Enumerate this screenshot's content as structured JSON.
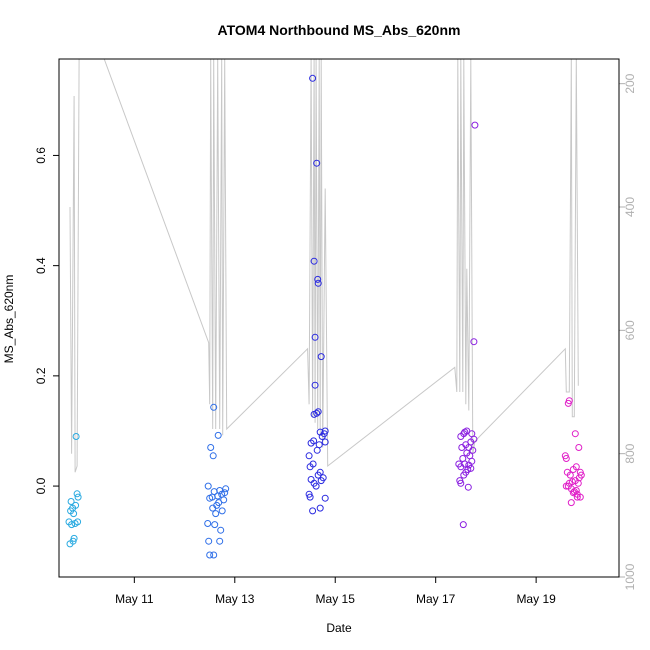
{
  "chart_data": {
    "type": "scatter",
    "title": "ATOM4 Northbound MS_Abs_620nm",
    "xlabel": "Date",
    "ylabel": "MS_Abs_620nm",
    "xlim": [
      9.5,
      20.65
    ],
    "ylim": [
      -0.165,
      0.775
    ],
    "y_ticks": [
      0.0,
      0.2,
      0.4,
      0.6
    ],
    "x_ticks": [
      {
        "value": 11,
        "label": "May 11"
      },
      {
        "value": 13,
        "label": "May 13"
      },
      {
        "value": 15,
        "label": "May 15"
      },
      {
        "value": 17,
        "label": "May 17"
      },
      {
        "value": 19,
        "label": "May 19"
      }
    ],
    "secondary_axis": {
      "side": "right",
      "reversed": true,
      "range": [
        1000,
        160
      ],
      "ticks": [
        200,
        400,
        600,
        800,
        1000
      ],
      "color": "#b0b0b0"
    },
    "point_groups": [
      {
        "color": "#29aae1",
        "points": [
          [
            9.72,
            -0.105
          ],
          [
            9.78,
            -0.1
          ],
          [
            9.8,
            -0.095
          ],
          [
            9.7,
            -0.065
          ],
          [
            9.75,
            -0.07
          ],
          [
            9.82,
            -0.068
          ],
          [
            9.87,
            -0.065
          ],
          [
            9.79,
            -0.05
          ],
          [
            9.73,
            -0.045
          ],
          [
            9.77,
            -0.04
          ],
          [
            9.74,
            -0.028
          ],
          [
            9.83,
            -0.035
          ],
          [
            9.88,
            -0.02
          ],
          [
            9.86,
            -0.014
          ],
          [
            9.84,
            0.09
          ]
        ]
      },
      {
        "color": "#2f6fe8",
        "points": [
          [
            12.5,
            -0.125
          ],
          [
            12.58,
            -0.125
          ],
          [
            12.48,
            -0.1
          ],
          [
            12.7,
            -0.1
          ],
          [
            12.72,
            -0.08
          ],
          [
            12.46,
            -0.068
          ],
          [
            12.6,
            -0.07
          ],
          [
            12.62,
            -0.05
          ],
          [
            12.75,
            -0.045
          ],
          [
            12.56,
            -0.04
          ],
          [
            12.64,
            -0.035
          ],
          [
            12.68,
            -0.03
          ],
          [
            12.78,
            -0.025
          ],
          [
            12.5,
            -0.022
          ],
          [
            12.55,
            -0.02
          ],
          [
            12.66,
            -0.018
          ],
          [
            12.74,
            -0.015
          ],
          [
            12.8,
            -0.012
          ],
          [
            12.59,
            -0.01
          ],
          [
            12.7,
            -0.008
          ],
          [
            12.82,
            -0.005
          ],
          [
            12.47,
            0.0
          ],
          [
            12.52,
            0.07
          ],
          [
            12.57,
            0.055
          ],
          [
            12.67,
            0.092
          ],
          [
            12.58,
            0.143
          ]
        ]
      },
      {
        "color": "#2a2ae0",
        "points": [
          [
            14.48,
            -0.015
          ],
          [
            14.55,
            -0.045
          ],
          [
            14.7,
            -0.04
          ],
          [
            14.8,
            -0.022
          ],
          [
            14.5,
            -0.02
          ],
          [
            14.62,
            0.0
          ],
          [
            14.58,
            0.005
          ],
          [
            14.72,
            0.01
          ],
          [
            14.52,
            0.012
          ],
          [
            14.66,
            0.02
          ],
          [
            14.76,
            0.015
          ],
          [
            14.7,
            0.025
          ],
          [
            14.5,
            0.035
          ],
          [
            14.56,
            0.04
          ],
          [
            14.48,
            0.055
          ],
          [
            14.64,
            0.065
          ],
          [
            14.52,
            0.078
          ],
          [
            14.57,
            0.082
          ],
          [
            14.68,
            0.075
          ],
          [
            14.8,
            0.08
          ],
          [
            14.74,
            0.09
          ],
          [
            14.78,
            0.095
          ],
          [
            14.7,
            0.098
          ],
          [
            14.8,
            0.1
          ],
          [
            14.58,
            0.13
          ],
          [
            14.63,
            0.132
          ],
          [
            14.66,
            0.135
          ],
          [
            14.6,
            0.183
          ],
          [
            14.72,
            0.235
          ],
          [
            14.6,
            0.27
          ],
          [
            14.66,
            0.368
          ],
          [
            14.65,
            0.375
          ],
          [
            14.58,
            0.408
          ],
          [
            14.63,
            0.586
          ],
          [
            14.55,
            0.74
          ]
        ]
      },
      {
        "color": "#8a1fe0",
        "points": [
          [
            17.48,
            0.01
          ],
          [
            17.5,
            0.005
          ],
          [
            17.56,
            0.02
          ],
          [
            17.6,
            0.025
          ],
          [
            17.64,
            0.03
          ],
          [
            17.7,
            0.032
          ],
          [
            17.5,
            0.035
          ],
          [
            17.58,
            0.04
          ],
          [
            17.66,
            0.038
          ],
          [
            17.72,
            0.045
          ],
          [
            17.46,
            0.04
          ],
          [
            17.54,
            0.05
          ],
          [
            17.62,
            0.06
          ],
          [
            17.68,
            0.055
          ],
          [
            17.74,
            0.065
          ],
          [
            17.52,
            0.07
          ],
          [
            17.6,
            0.075
          ],
          [
            17.66,
            0.07
          ],
          [
            17.7,
            0.08
          ],
          [
            17.76,
            0.085
          ],
          [
            17.5,
            0.09
          ],
          [
            17.56,
            0.095
          ],
          [
            17.62,
            0.1
          ],
          [
            17.58,
            0.098
          ],
          [
            17.72,
            0.095
          ],
          [
            17.65,
            -0.002
          ],
          [
            17.55,
            -0.07
          ],
          [
            17.76,
            0.262
          ],
          [
            17.78,
            0.655
          ]
        ]
      },
      {
        "color": "#e020c8",
        "points": [
          [
            19.6,
            0.0
          ],
          [
            19.66,
            0.005
          ],
          [
            19.72,
            0.008
          ],
          [
            19.78,
            0.01
          ],
          [
            19.84,
            0.005
          ],
          [
            19.64,
            0.0
          ],
          [
            19.7,
            -0.005
          ],
          [
            19.76,
            -0.01
          ],
          [
            19.82,
            -0.015
          ],
          [
            19.88,
            -0.02
          ],
          [
            19.74,
            -0.012
          ],
          [
            19.8,
            -0.008
          ],
          [
            19.86,
            0.015
          ],
          [
            19.9,
            0.02
          ],
          [
            19.62,
            0.025
          ],
          [
            19.68,
            0.02
          ],
          [
            19.74,
            0.03
          ],
          [
            19.8,
            0.035
          ],
          [
            19.88,
            0.025
          ],
          [
            19.6,
            0.05
          ],
          [
            19.58,
            0.055
          ],
          [
            19.85,
            0.07
          ],
          [
            19.78,
            0.095
          ],
          [
            19.64,
            0.15
          ],
          [
            19.66,
            0.155
          ],
          [
            19.82,
            -0.02
          ],
          [
            19.7,
            -0.03
          ]
        ]
      }
    ],
    "depth_trace": {
      "color": "#c8c8c8",
      "points": [
        [
          9.72,
          400
        ],
        [
          9.75,
          800
        ],
        [
          9.8,
          220
        ],
        [
          9.82,
          830
        ],
        [
          9.86,
          820
        ],
        [
          9.9,
          160
        ],
        [
          10.0,
          160
        ],
        [
          10.4,
          160
        ],
        [
          12.48,
          620
        ],
        [
          12.5,
          720
        ],
        [
          12.52,
          160
        ],
        [
          12.56,
          760
        ],
        [
          12.58,
          160
        ],
        [
          12.62,
          760
        ],
        [
          12.66,
          160
        ],
        [
          12.7,
          760
        ],
        [
          12.74,
          160
        ],
        [
          12.76,
          770
        ],
        [
          12.8,
          160
        ],
        [
          12.84,
          760
        ],
        [
          14.45,
          630
        ],
        [
          14.48,
          720
        ],
        [
          14.52,
          160
        ],
        [
          14.55,
          740
        ],
        [
          14.58,
          160
        ],
        [
          14.6,
          750
        ],
        [
          14.62,
          160
        ],
        [
          14.65,
          760
        ],
        [
          14.68,
          160
        ],
        [
          14.7,
          770
        ],
        [
          14.72,
          160
        ],
        [
          14.75,
          790
        ],
        [
          14.8,
          370
        ],
        [
          14.85,
          820
        ],
        [
          17.38,
          660
        ],
        [
          17.42,
          700
        ],
        [
          17.44,
          160
        ],
        [
          17.48,
          700
        ],
        [
          17.5,
          160
        ],
        [
          17.54,
          700
        ],
        [
          17.56,
          160
        ],
        [
          17.6,
          720
        ],
        [
          17.62,
          500
        ],
        [
          17.66,
          730
        ],
        [
          17.7,
          160
        ],
        [
          17.74,
          800
        ],
        [
          17.78,
          780
        ],
        [
          19.58,
          630
        ],
        [
          19.6,
          700
        ],
        [
          19.66,
          700
        ],
        [
          19.7,
          160
        ],
        [
          19.72,
          740
        ],
        [
          19.76,
          740
        ],
        [
          19.8,
          160
        ],
        [
          19.84,
          690
        ]
      ]
    }
  }
}
